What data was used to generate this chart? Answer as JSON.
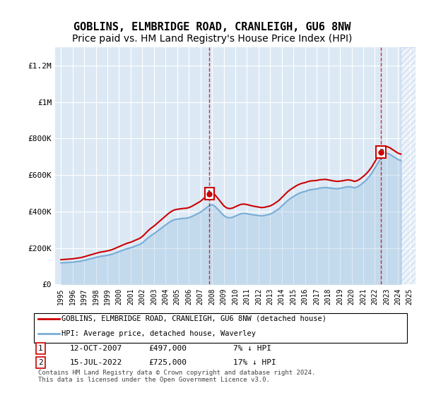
{
  "title": "GOBLINS, ELMBRIDGE ROAD, CRANLEIGH, GU6 8NW",
  "subtitle": "Price paid vs. HM Land Registry's House Price Index (HPI)",
  "title_fontsize": 11,
  "subtitle_fontsize": 10,
  "ylabel_ticks": [
    "£0",
    "£200K",
    "£400K",
    "£600K",
    "£800K",
    "£1M",
    "£1.2M"
  ],
  "ytick_values": [
    0,
    200000,
    400000,
    600000,
    800000,
    1000000,
    1200000
  ],
  "ylim": [
    0,
    1300000
  ],
  "xlim_start": 1994.5,
  "xlim_end": 2025.5,
  "background_color": "#dce9f5",
  "hatch_color": "#b0c8e8",
  "plot_bg": "#dce9f5",
  "hpi_line_color": "#7aaed6",
  "price_line_color": "#cc0000",
  "transaction1": {
    "date": "12-OCT-2007",
    "price": 497000,
    "label": "1",
    "year": 2007.78,
    "hpi_pct": "7% ↓ HPI"
  },
  "transaction2": {
    "date": "15-JUL-2022",
    "price": 725000,
    "label": "2",
    "year": 2022.54,
    "hpi_pct": "17% ↓ HPI"
  },
  "legend_label1": "GOBLINS, ELMBRIDGE ROAD, CRANLEIGH, GU6 8NW (detached house)",
  "legend_label2": "HPI: Average price, detached house, Waverley",
  "footer": "Contains HM Land Registry data © Crown copyright and database right 2024.\nThis data is licensed under the Open Government Licence v3.0.",
  "hpi_data": {
    "years": [
      1995,
      1995.25,
      1995.5,
      1995.75,
      1996,
      1996.25,
      1996.5,
      1996.75,
      1997,
      1997.25,
      1997.5,
      1997.75,
      1998,
      1998.25,
      1998.5,
      1998.75,
      1999,
      1999.25,
      1999.5,
      1999.75,
      2000,
      2000.25,
      2000.5,
      2000.75,
      2001,
      2001.25,
      2001.5,
      2001.75,
      2002,
      2002.25,
      2002.5,
      2002.75,
      2003,
      2003.25,
      2003.5,
      2003.75,
      2004,
      2004.25,
      2004.5,
      2004.75,
      2005,
      2005.25,
      2005.5,
      2005.75,
      2006,
      2006.25,
      2006.5,
      2006.75,
      2007,
      2007.25,
      2007.5,
      2007.75,
      2008,
      2008.25,
      2008.5,
      2008.75,
      2009,
      2009.25,
      2009.5,
      2009.75,
      2010,
      2010.25,
      2010.5,
      2010.75,
      2011,
      2011.25,
      2011.5,
      2011.75,
      2012,
      2012.25,
      2012.5,
      2012.75,
      2013,
      2013.25,
      2013.5,
      2013.75,
      2014,
      2014.25,
      2014.5,
      2014.75,
      2015,
      2015.25,
      2015.5,
      2015.75,
      2016,
      2016.25,
      2016.5,
      2016.75,
      2017,
      2017.25,
      2017.5,
      2017.75,
      2018,
      2018.25,
      2018.5,
      2018.75,
      2019,
      2019.25,
      2019.5,
      2019.75,
      2020,
      2020.25,
      2020.5,
      2020.75,
      2021,
      2021.25,
      2021.5,
      2021.75,
      2022,
      2022.25,
      2022.5,
      2022.75,
      2023,
      2023.25,
      2023.5,
      2023.75,
      2024,
      2024.25
    ],
    "values": [
      118000,
      119000,
      120000,
      121000,
      122000,
      124000,
      126000,
      128000,
      132000,
      136000,
      140000,
      144000,
      148000,
      152000,
      155000,
      157000,
      160000,
      163000,
      168000,
      174000,
      180000,
      186000,
      192000,
      197000,
      201000,
      207000,
      213000,
      219000,
      228000,
      242000,
      256000,
      268000,
      278000,
      290000,
      302000,
      314000,
      326000,
      338000,
      348000,
      355000,
      358000,
      360000,
      362000,
      363000,
      366000,
      372000,
      380000,
      388000,
      396000,
      408000,
      420000,
      432000,
      438000,
      428000,
      412000,
      395000,
      378000,
      368000,
      365000,
      368000,
      375000,
      382000,
      388000,
      390000,
      388000,
      385000,
      382000,
      380000,
      378000,
      376000,
      378000,
      382000,
      386000,
      394000,
      404000,
      415000,
      430000,
      445000,
      460000,
      472000,
      482000,
      492000,
      500000,
      506000,
      510000,
      516000,
      520000,
      522000,
      524000,
      528000,
      530000,
      532000,
      530000,
      528000,
      526000,
      525000,
      527000,
      530000,
      534000,
      536000,
      534000,
      530000,
      535000,
      545000,
      558000,
      572000,
      590000,
      612000,
      638000,
      665000,
      690000,
      710000,
      720000,
      715000,
      705000,
      695000,
      685000,
      680000
    ]
  }
}
